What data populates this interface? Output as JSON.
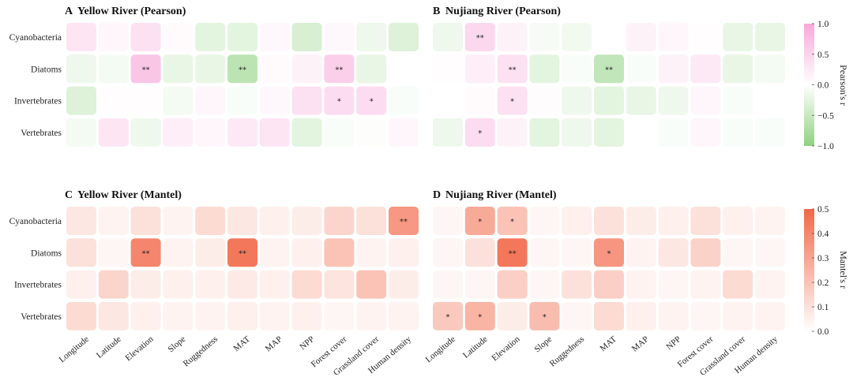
{
  "colors": {
    "positive_pearson": "#f7a8d9",
    "negative_pearson": "#8fd27f",
    "mantel_high": "#f26849"
  },
  "chart_data": [
    {
      "type": "heatmap",
      "panel_letter": "A",
      "title": "Yellow River (Pearson)",
      "metric": "pearson",
      "rows": [
        "Cyanobacteria",
        "Diatoms",
        "Invertebrates",
        "Vertebrates"
      ],
      "columns": [
        "Longitude",
        "Latitude",
        "Elevation",
        "Slope",
        "Ruggedness",
        "MAT",
        "MAP",
        "NPP",
        "Forest cover",
        "Grassland cover",
        "Human density"
      ],
      "values": [
        [
          0.3,
          0.1,
          0.35,
          0.05,
          -0.25,
          -0.25,
          0.08,
          -0.35,
          0.08,
          -0.15,
          -0.3
        ],
        [
          -0.15,
          -0.1,
          0.65,
          -0.2,
          -0.2,
          -0.6,
          0.05,
          0.15,
          0.55,
          -0.2,
          0.0
        ],
        [
          -0.3,
          0.02,
          0.02,
          -0.1,
          0.1,
          -0.05,
          0.08,
          0.35,
          0.4,
          0.4,
          -0.05
        ],
        [
          -0.1,
          0.3,
          -0.15,
          0.2,
          0.1,
          0.25,
          0.3,
          -0.25,
          -0.05,
          -0.02,
          0.1
        ]
      ],
      "significance": [
        [
          "",
          "",
          "",
          "",
          "",
          "",
          "",
          "",
          "",
          "",
          ""
        ],
        [
          "",
          "",
          "**",
          "",
          "",
          "**",
          "",
          "",
          "**",
          "",
          ""
        ],
        [
          "",
          "",
          "",
          "",
          "",
          "",
          "",
          "",
          "*",
          "*",
          ""
        ],
        [
          "",
          "",
          "",
          "",
          "",
          "",
          "",
          "",
          "",
          "",
          ""
        ]
      ]
    },
    {
      "type": "heatmap",
      "panel_letter": "B",
      "title": "Nujiang River (Pearson)",
      "metric": "pearson",
      "rows": [
        "Cyanobacteria",
        "Diatoms",
        "Invertebrates",
        "Vertebrates"
      ],
      "columns": [
        "Longitude",
        "Latitude",
        "Elevation",
        "Slope",
        "Ruggedness",
        "MAT",
        "MAP",
        "NPP",
        "Forest cover",
        "Grassland cover",
        "Human density"
      ],
      "values": [
        [
          -0.15,
          0.45,
          0.15,
          -0.08,
          -0.12,
          0.0,
          0.15,
          0.1,
          0.02,
          -0.2,
          -0.2
        ],
        [
          0.02,
          0.2,
          0.35,
          -0.25,
          -0.05,
          -0.55,
          -0.05,
          0.15,
          0.25,
          -0.2,
          -0.1
        ],
        [
          0.0,
          0.05,
          0.35,
          0.03,
          -0.15,
          -0.25,
          -0.2,
          -0.15,
          0.1,
          -0.05,
          0.0
        ],
        [
          -0.15,
          0.4,
          0.15,
          -0.25,
          -0.15,
          -0.25,
          0.0,
          -0.05,
          0.1,
          -0.05,
          -0.05
        ]
      ],
      "significance": [
        [
          "",
          "**",
          "",
          "",
          "",
          "",
          "",
          "",
          "",
          "",
          ""
        ],
        [
          "",
          "",
          "**",
          "",
          "",
          "**",
          "",
          "",
          "",
          "",
          ""
        ],
        [
          "",
          "",
          "*",
          "",
          "",
          "",
          "",
          "",
          "",
          "",
          ""
        ],
        [
          "",
          "*",
          "",
          "",
          "",
          "",
          "",
          "",
          "",
          "",
          ""
        ]
      ]
    },
    {
      "type": "heatmap",
      "panel_letter": "C",
      "title": "Yellow River (Mantel)",
      "metric": "mantel",
      "rows": [
        "Cyanobacteria",
        "Diatoms",
        "Invertebrates",
        "Vertebrates"
      ],
      "columns": [
        "Longitude",
        "Latitude",
        "Elevation",
        "Slope",
        "Ruggedness",
        "MAT",
        "MAP",
        "NPP",
        "Forest cover",
        "Grassland cover",
        "Human density"
      ],
      "values": [
        [
          0.08,
          0.04,
          0.1,
          0.04,
          0.12,
          0.08,
          0.05,
          0.06,
          0.14,
          0.1,
          0.34
        ],
        [
          0.1,
          0.03,
          0.4,
          0.04,
          0.06,
          0.45,
          0.04,
          0.05,
          0.2,
          0.04,
          0.05
        ],
        [
          0.05,
          0.14,
          0.06,
          0.05,
          0.05,
          0.07,
          0.05,
          0.12,
          0.09,
          0.2,
          0.06
        ],
        [
          0.12,
          0.08,
          0.05,
          0.04,
          0.04,
          0.05,
          0.04,
          0.05,
          0.03,
          0.04,
          0.04
        ]
      ],
      "significance": [
        [
          "",
          "",
          "",
          "",
          "",
          "",
          "",
          "",
          "",
          "",
          "**"
        ],
        [
          "",
          "",
          "**",
          "",
          "",
          "**",
          "",
          "",
          "",
          "",
          ""
        ],
        [
          "",
          "",
          "",
          "",
          "",
          "",
          "",
          "",
          "",
          "",
          ""
        ],
        [
          "",
          "",
          "",
          "",
          "",
          "",
          "",
          "",
          "",
          "",
          ""
        ]
      ]
    },
    {
      "type": "heatmap",
      "panel_letter": "D",
      "title": "Nujiang River (Mantel)",
      "metric": "mantel",
      "rows": [
        "Cyanobacteria",
        "Diatoms",
        "Invertebrates",
        "Vertebrates"
      ],
      "columns": [
        "Longitude",
        "Latitude",
        "Elevation",
        "Slope",
        "Ruggedness",
        "MAT",
        "MAP",
        "NPP",
        "Forest cover",
        "Grassland cover",
        "Human density"
      ],
      "values": [
        [
          0.03,
          0.28,
          0.2,
          0.03,
          0.05,
          0.1,
          0.06,
          0.05,
          0.1,
          0.05,
          0.04
        ],
        [
          0.03,
          0.1,
          0.45,
          0.03,
          0.03,
          0.35,
          0.04,
          0.08,
          0.15,
          0.03,
          0.03
        ],
        [
          0.03,
          0.03,
          0.16,
          0.03,
          0.1,
          0.16,
          0.04,
          0.03,
          0.04,
          0.12,
          0.04
        ],
        [
          0.18,
          0.25,
          0.06,
          0.22,
          0.03,
          0.12,
          0.05,
          0.04,
          0.03,
          0.04,
          0.04
        ]
      ],
      "significance": [
        [
          "",
          "*",
          "*",
          "",
          "",
          "",
          "",
          "",
          "",
          "",
          ""
        ],
        [
          "",
          "",
          "**",
          "",
          "",
          "*",
          "",
          "",
          "",
          "",
          ""
        ],
        [
          "",
          "",
          "",
          "",
          "",
          "",
          "",
          "",
          "",
          "",
          ""
        ],
        [
          "*",
          "*",
          "",
          "*",
          "",
          "",
          "",
          "",
          "",
          "",
          ""
        ]
      ]
    }
  ],
  "legends": {
    "pearson": {
      "label": "Pearson's r",
      "range": [
        -1.0,
        1.0
      ],
      "ticks": [
        "1.0",
        "0.5",
        "0.0",
        "−0.5",
        "−1.0"
      ],
      "tick_values": [
        1.0,
        0.5,
        0.0,
        -0.5,
        -1.0
      ]
    },
    "mantel": {
      "label": "Mantel's r",
      "range": [
        0.0,
        0.5
      ],
      "ticks": [
        "0.5",
        "0.4",
        "0.3",
        "0.2",
        "0.1",
        "0.0"
      ],
      "tick_values": [
        0.5,
        0.4,
        0.3,
        0.2,
        0.1,
        0.0
      ]
    }
  }
}
